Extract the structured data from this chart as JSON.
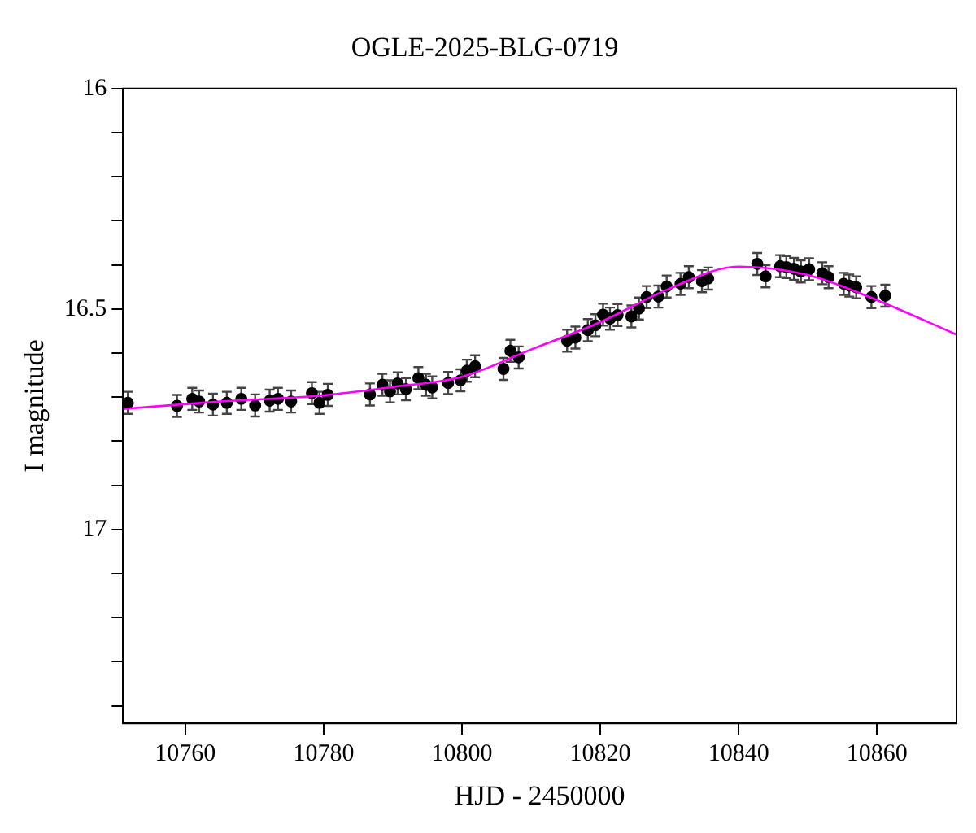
{
  "chart_data": {
    "type": "scatter",
    "title": "OGLE-2025-BLG-0719",
    "xlabel": "HJD - 2450000",
    "ylabel": "I magnitude",
    "xlim": [
      10751,
      10871.5
    ],
    "ylim": [
      17.44,
      16
    ],
    "xticks": [
      10760,
      10780,
      10800,
      10820,
      10840,
      10860
    ],
    "yticks": [
      16,
      {
        "value": 16.1,
        "label": null
      },
      {
        "value": 16.2,
        "label": null
      },
      {
        "value": 16.3,
        "label": null
      },
      {
        "value": 16.4,
        "label": null
      },
      16.5,
      {
        "value": 16.6,
        "label": null
      },
      {
        "value": 16.7,
        "label": null
      },
      {
        "value": 16.8,
        "label": null
      },
      {
        "value": 16.9,
        "label": null
      },
      17,
      {
        "value": 17.1,
        "label": null
      },
      {
        "value": 17.2,
        "label": null
      },
      {
        "value": 17.3,
        "label": null
      },
      {
        "value": 17.4,
        "label": null
      }
    ],
    "grid": false,
    "legend": false,
    "series": [
      {
        "type": "line",
        "color": "#ff00ff",
        "marker": "none",
        "line_style": "solid",
        "x": [
          10751,
          10765,
          10780,
          10790,
          10800,
          10810,
          10820,
          10830,
          10840,
          10850,
          10860,
          10871.5
        ],
        "values": [
          16.727,
          16.71,
          16.696,
          16.677,
          16.654,
          16.592,
          16.53,
          16.454,
          16.404,
          16.423,
          16.48,
          16.558
        ]
      },
      {
        "color": "#000000",
        "marker": "circle",
        "x": [
          10751.7,
          10758.8,
          10761.0,
          10762.0,
          10764.0,
          10766.0,
          10768.1,
          10770.1,
          10772.2,
          10773.4,
          10775.3,
          10778.3,
          10779.4,
          10780.6,
          10786.7,
          10788.5,
          10789.6,
          10790.7,
          10791.9,
          10793.7,
          10794.8,
          10795.7,
          10798.0,
          10799.8,
          10800.7,
          10801.9,
          10806.0,
          10807.0,
          10808.2,
          10815.2,
          10816.4,
          10818.2,
          10819.3,
          10820.4,
          10821.4,
          10822.5,
          10824.5,
          10825.6,
          10826.7,
          10828.4,
          10829.6,
          10831.6,
          10832.8,
          10834.7,
          10835.6,
          10842.7,
          10843.9,
          10846.0,
          10846.9,
          10848.0,
          10849.0,
          10850.2,
          10852.1,
          10853.0,
          10855.2,
          10856.0,
          10857.0,
          10859.2,
          10861.2
        ],
        "values": [
          16.713,
          16.72,
          16.704,
          16.71,
          16.717,
          16.713,
          16.704,
          16.719,
          16.708,
          16.704,
          16.71,
          16.691,
          16.713,
          16.695,
          16.694,
          16.672,
          16.687,
          16.669,
          16.682,
          16.657,
          16.672,
          16.678,
          16.668,
          16.662,
          16.64,
          16.63,
          16.636,
          16.595,
          16.61,
          16.572,
          16.565,
          16.548,
          16.537,
          16.513,
          16.522,
          16.514,
          16.517,
          16.499,
          16.473,
          16.472,
          16.449,
          16.443,
          16.428,
          16.437,
          16.431,
          16.398,
          16.426,
          16.403,
          16.405,
          16.409,
          16.415,
          16.41,
          16.419,
          16.428,
          16.443,
          16.447,
          16.451,
          16.473,
          16.47
        ],
        "errors": [
          0.025,
          0.025,
          0.025,
          0.025,
          0.025,
          0.025,
          0.025,
          0.025,
          0.025,
          0.025,
          0.025,
          0.025,
          0.025,
          0.025,
          0.025,
          0.025,
          0.025,
          0.025,
          0.025,
          0.025,
          0.025,
          0.025,
          0.025,
          0.025,
          0.025,
          0.025,
          0.025,
          0.025,
          0.025,
          0.025,
          0.025,
          0.025,
          0.025,
          0.025,
          0.025,
          0.025,
          0.025,
          0.025,
          0.025,
          0.025,
          0.025,
          0.025,
          0.025,
          0.025,
          0.025,
          0.025,
          0.025,
          0.025,
          0.025,
          0.025,
          0.025,
          0.025,
          0.025,
          0.025,
          0.025,
          0.025,
          0.025,
          0.025,
          0.025
        ]
      }
    ]
  }
}
